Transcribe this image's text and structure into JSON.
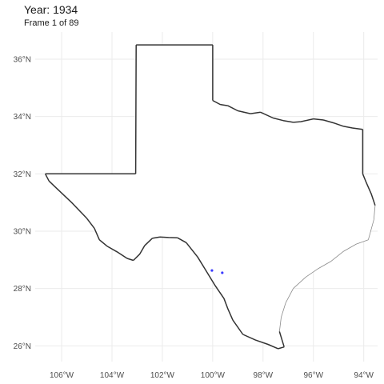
{
  "header": {
    "title": "Year: 1934",
    "subtitle": "Frame 1 of 89"
  },
  "colors": {
    "grid": "#ebebeb",
    "border": "#333333",
    "coast": "#8a8a8a",
    "points": "#3b3bff",
    "axis_text": "#4d4d4d"
  },
  "axes": {
    "x_ticks": [
      {
        "value": -106,
        "label": "106°W"
      },
      {
        "value": -104,
        "label": "104°W"
      },
      {
        "value": -102,
        "label": "102°W"
      },
      {
        "value": -100,
        "label": "100°W"
      },
      {
        "value": -98,
        "label": "98°W"
      },
      {
        "value": -96,
        "label": "96°W"
      },
      {
        "value": -94,
        "label": "94°W"
      }
    ],
    "y_ticks": [
      {
        "value": 26,
        "label": "26°N"
      },
      {
        "value": 28,
        "label": "28°N"
      },
      {
        "value": 30,
        "label": "30°N"
      },
      {
        "value": 32,
        "label": "32°N"
      },
      {
        "value": 34,
        "label": "34°N"
      },
      {
        "value": 36,
        "label": "36°N"
      }
    ],
    "xlim": [
      -107.05,
      -93.45
    ],
    "ylim": [
      25.45,
      36.95
    ],
    "grid": true
  },
  "chart_data": {
    "type": "scatter",
    "title": "Year: 1934",
    "subtitle": "Frame 1 of 89",
    "xlabel": "",
    "ylabel": "",
    "series": [
      {
        "x": [
          -100.03,
          -99.62
        ],
        "y": [
          28.63,
          28.55
        ]
      }
    ]
  },
  "outline": [
    [
      -106.65,
      32.0
    ],
    [
      -103.06,
      32.0
    ],
    [
      -103.04,
      36.5
    ],
    [
      -100.0,
      36.5
    ],
    [
      -100.0,
      34.56
    ],
    [
      -99.7,
      34.42
    ],
    [
      -99.4,
      34.38
    ],
    [
      -99.0,
      34.2
    ],
    [
      -98.5,
      34.1
    ],
    [
      -98.1,
      34.15
    ],
    [
      -97.6,
      33.95
    ],
    [
      -97.2,
      33.86
    ],
    [
      -96.8,
      33.8
    ],
    [
      -96.5,
      33.82
    ],
    [
      -96.0,
      33.92
    ],
    [
      -95.6,
      33.88
    ],
    [
      -95.2,
      33.78
    ],
    [
      -94.8,
      33.66
    ],
    [
      -94.45,
      33.6
    ],
    [
      -94.04,
      33.55
    ],
    [
      -94.04,
      32.0
    ],
    [
      -93.9,
      31.7
    ],
    [
      -93.7,
      31.3
    ],
    [
      -93.55,
      30.9
    ],
    [
      -93.6,
      30.4
    ],
    [
      -93.82,
      29.7
    ],
    [
      -94.3,
      29.55
    ],
    [
      -94.8,
      29.3
    ],
    [
      -95.3,
      28.95
    ],
    [
      -95.8,
      28.7
    ],
    [
      -96.3,
      28.4
    ],
    [
      -96.8,
      28.0
    ],
    [
      -97.1,
      27.5
    ],
    [
      -97.28,
      27.0
    ],
    [
      -97.35,
      26.5
    ],
    [
      -97.16,
      25.96
    ],
    [
      -97.4,
      25.9
    ],
    [
      -97.8,
      26.05
    ],
    [
      -98.3,
      26.2
    ],
    [
      -98.8,
      26.4
    ],
    [
      -99.2,
      26.9
    ],
    [
      -99.4,
      27.3
    ],
    [
      -99.55,
      27.65
    ],
    [
      -99.9,
      28.1
    ],
    [
      -100.25,
      28.6
    ],
    [
      -100.6,
      29.1
    ],
    [
      -101.05,
      29.6
    ],
    [
      -101.4,
      29.77
    ],
    [
      -101.75,
      29.78
    ],
    [
      -102.1,
      29.8
    ],
    [
      -102.4,
      29.75
    ],
    [
      -102.7,
      29.5
    ],
    [
      -102.9,
      29.2
    ],
    [
      -103.15,
      28.98
    ],
    [
      -103.4,
      29.05
    ],
    [
      -103.8,
      29.28
    ],
    [
      -104.2,
      29.48
    ],
    [
      -104.5,
      29.7
    ],
    [
      -104.7,
      30.1
    ],
    [
      -105.0,
      30.45
    ],
    [
      -105.6,
      31.0
    ],
    [
      -106.2,
      31.5
    ],
    [
      -106.5,
      31.75
    ],
    [
      -106.65,
      32.0
    ]
  ]
}
